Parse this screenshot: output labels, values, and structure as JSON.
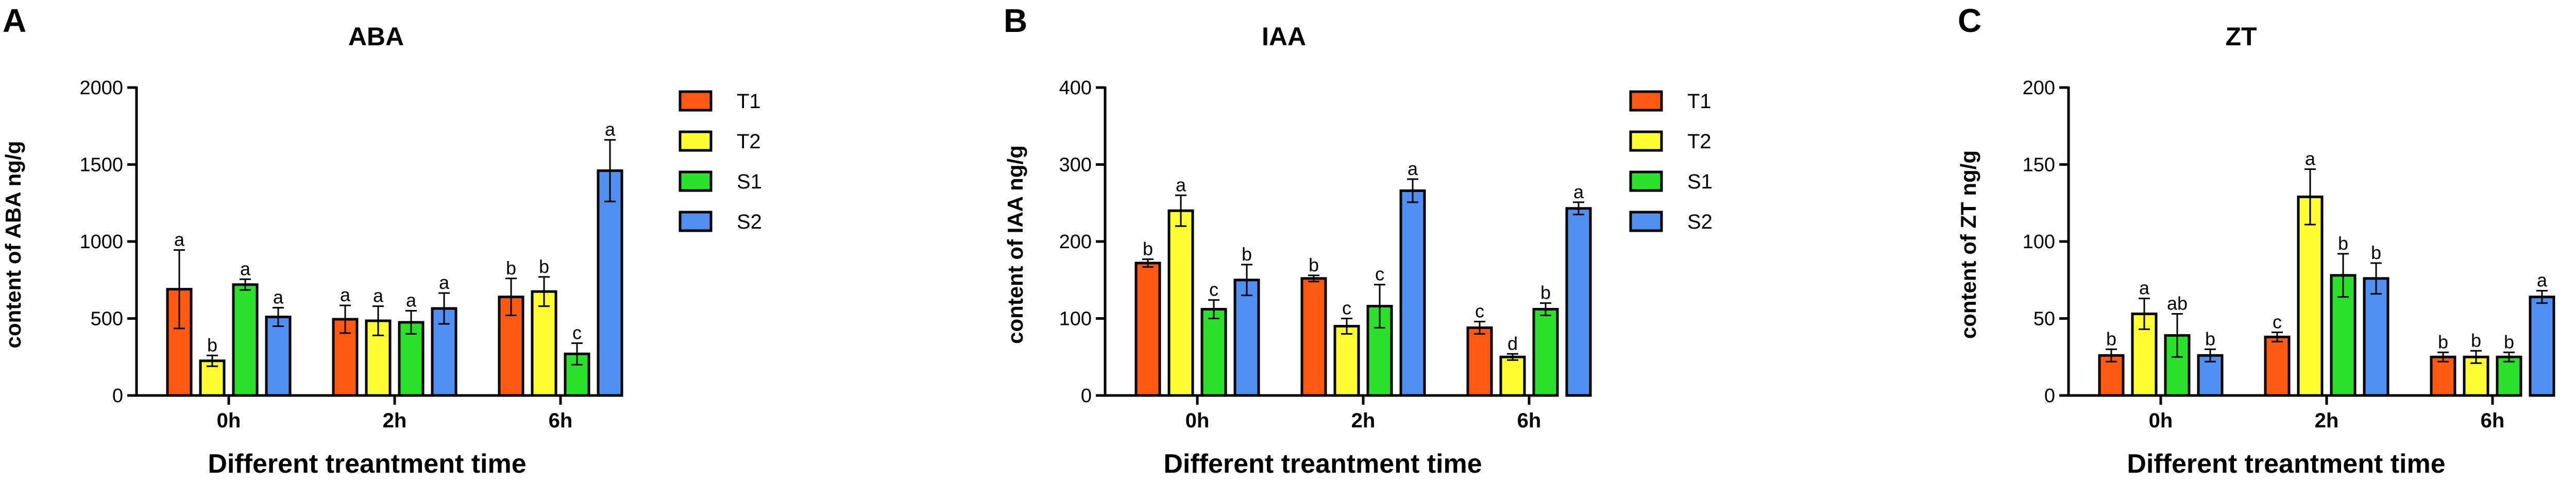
{
  "colors": {
    "T1": "#FF5A14",
    "T2": "#FFFF33",
    "S1": "#2BE02B",
    "S2": "#4F8FF2",
    "axis": "#000000"
  },
  "chart_data": [
    {
      "panel": "A",
      "type": "bar",
      "title": "ABA",
      "xlabel": "Different treantment time",
      "ylabel": "content of ABA ng/g",
      "ylim": [
        0,
        2000
      ],
      "yticks": [
        0,
        500,
        1000,
        1500,
        2000
      ],
      "categories": [
        "0h",
        "2h",
        "6h"
      ],
      "series": [
        {
          "name": "T1",
          "values": [
            690,
            495,
            640
          ],
          "errors": [
            255,
            90,
            120
          ],
          "labels": [
            "a",
            "a",
            "b"
          ]
        },
        {
          "name": "T2",
          "values": [
            225,
            485,
            675
          ],
          "errors": [
            35,
            95,
            95
          ],
          "labels": [
            "b",
            "a",
            "b"
          ]
        },
        {
          "name": "S1",
          "values": [
            720,
            475,
            270
          ],
          "errors": [
            35,
            75,
            70
          ],
          "labels": [
            "a",
            "a",
            "c"
          ]
        },
        {
          "name": "S2",
          "values": [
            510,
            565,
            1460
          ],
          "errors": [
            60,
            100,
            200
          ],
          "labels": [
            "a",
            "a",
            "a"
          ]
        }
      ],
      "legend": [
        "T1",
        "T2",
        "S1",
        "S2"
      ]
    },
    {
      "panel": "B",
      "type": "bar",
      "title": "IAA",
      "xlabel": "Different treantment time",
      "ylabel": "content of IAA ng/g",
      "ylim": [
        0,
        400
      ],
      "yticks": [
        0,
        100,
        200,
        300,
        400
      ],
      "categories": [
        "0h",
        "2h",
        "6h"
      ],
      "series": [
        {
          "name": "T1",
          "values": [
            172,
            152,
            88
          ],
          "errors": [
            5,
            4,
            8
          ],
          "labels": [
            "b",
            "b",
            "c"
          ]
        },
        {
          "name": "T2",
          "values": [
            240,
            90,
            50
          ],
          "errors": [
            20,
            10,
            4
          ],
          "labels": [
            "a",
            "c",
            "d"
          ]
        },
        {
          "name": "S1",
          "values": [
            112,
            116,
            112
          ],
          "errors": [
            12,
            28,
            8
          ],
          "labels": [
            "c",
            "c",
            "b"
          ]
        },
        {
          "name": "S2",
          "values": [
            150,
            266,
            243
          ],
          "errors": [
            20,
            15,
            8
          ],
          "labels": [
            "b",
            "a",
            "a"
          ]
        }
      ],
      "legend": [
        "T1",
        "T2",
        "S1",
        "S2"
      ]
    },
    {
      "panel": "C",
      "type": "bar",
      "title": "ZT",
      "xlabel": "Different treantment time",
      "ylabel": "content of ZT ng/g",
      "ylim": [
        0,
        200
      ],
      "yticks": [
        0,
        50,
        100,
        150,
        200
      ],
      "categories": [
        "0h",
        "2h",
        "6h"
      ],
      "series": [
        {
          "name": "T1",
          "values": [
            26,
            38,
            25
          ],
          "errors": [
            4,
            3,
            3
          ],
          "labels": [
            "b",
            "c",
            "b"
          ]
        },
        {
          "name": "T2",
          "values": [
            53,
            129,
            25
          ],
          "errors": [
            10,
            18,
            4
          ],
          "labels": [
            "a",
            "a",
            "b"
          ]
        },
        {
          "name": "S1",
          "values": [
            39,
            78,
            25
          ],
          "errors": [
            14,
            14,
            3
          ],
          "labels": [
            "ab",
            "b",
            "b"
          ]
        },
        {
          "name": "S2",
          "values": [
            26,
            76,
            64
          ],
          "errors": [
            4,
            10,
            4
          ],
          "labels": [
            "b",
            "b",
            "a"
          ]
        }
      ],
      "legend": [
        "T1",
        "T2",
        "S1",
        "S2"
      ]
    }
  ]
}
